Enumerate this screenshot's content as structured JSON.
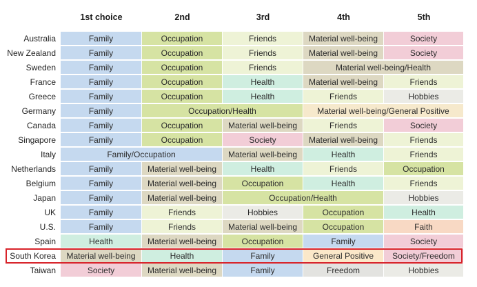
{
  "columns": [
    "1st choice",
    "2nd",
    "3rd",
    "4th",
    "5th"
  ],
  "colors": {
    "Family": "#c5d9ef",
    "Occupation": "#d6e3a3",
    "Friends": "#eef3d6",
    "Material well-being": "#ddd8c2",
    "Society": "#f2cdd7",
    "Health": "#cfeee0",
    "Hobbies": "#ebebe6",
    "Faith": "#f8d9c4",
    "General Positive": "#fbe8c9",
    "Society/Freedom": "#f2cdd7",
    "Freedom": "#e3e3e0",
    "Material well-being/Health": "#ddd8c2",
    "Occupation/Health": "#d6e3a3",
    "Material well-being/General Positive": "#f6e9cc",
    "Family/Occupation": "#c5d9ef"
  },
  "rows": [
    {
      "country": "Australia",
      "cells": [
        {
          "text": "Family",
          "span": 1
        },
        {
          "text": "Occupation",
          "span": 1
        },
        {
          "text": "Friends",
          "span": 1
        },
        {
          "text": "Material well-being",
          "span": 1
        },
        {
          "text": "Society",
          "span": 1
        }
      ]
    },
    {
      "country": "New Zealand",
      "cells": [
        {
          "text": "Family",
          "span": 1
        },
        {
          "text": "Occupation",
          "span": 1
        },
        {
          "text": "Friends",
          "span": 1
        },
        {
          "text": "Material well-being",
          "span": 1
        },
        {
          "text": "Society",
          "span": 1
        }
      ]
    },
    {
      "country": "Sweden",
      "cells": [
        {
          "text": "Family",
          "span": 1
        },
        {
          "text": "Occupation",
          "span": 1
        },
        {
          "text": "Friends",
          "span": 1
        },
        {
          "text": "Material well-being/Health",
          "span": 2
        }
      ]
    },
    {
      "country": "France",
      "cells": [
        {
          "text": "Family",
          "span": 1
        },
        {
          "text": "Occupation",
          "span": 1
        },
        {
          "text": "Health",
          "span": 1
        },
        {
          "text": "Material well-being",
          "span": 1
        },
        {
          "text": "Friends",
          "span": 1
        }
      ]
    },
    {
      "country": "Greece",
      "cells": [
        {
          "text": "Family",
          "span": 1
        },
        {
          "text": "Occupation",
          "span": 1
        },
        {
          "text": "Health",
          "span": 1
        },
        {
          "text": "Friends",
          "span": 1
        },
        {
          "text": "Hobbies",
          "span": 1
        }
      ]
    },
    {
      "country": "Germany",
      "cells": [
        {
          "text": "Family",
          "span": 1
        },
        {
          "text": "Occupation/Health",
          "span": 2
        },
        {
          "text": "Material well-being/General Positive",
          "span": 2
        }
      ]
    },
    {
      "country": "Canada",
      "cells": [
        {
          "text": "Family",
          "span": 1
        },
        {
          "text": "Occupation",
          "span": 1
        },
        {
          "text": "Material well-being",
          "span": 1
        },
        {
          "text": "Friends",
          "span": 1
        },
        {
          "text": "Society",
          "span": 1
        }
      ]
    },
    {
      "country": "Singapore",
      "cells": [
        {
          "text": "Family",
          "span": 1
        },
        {
          "text": "Occupation",
          "span": 1
        },
        {
          "text": "Society",
          "span": 1
        },
        {
          "text": "Material well-being",
          "span": 1
        },
        {
          "text": "Friends",
          "span": 1
        }
      ]
    },
    {
      "country": "Italy",
      "cells": [
        {
          "text": "Family/Occupation",
          "span": 2
        },
        {
          "text": "Material well-being",
          "span": 1
        },
        {
          "text": "Health",
          "span": 1
        },
        {
          "text": "Friends",
          "span": 1
        }
      ]
    },
    {
      "country": "Netherlands",
      "cells": [
        {
          "text": "Family",
          "span": 1
        },
        {
          "text": "Material well-being",
          "span": 1
        },
        {
          "text": "Health",
          "span": 1
        },
        {
          "text": "Friends",
          "span": 1
        },
        {
          "text": "Occupation",
          "span": 1
        }
      ]
    },
    {
      "country": "Belgium",
      "cells": [
        {
          "text": "Family",
          "span": 1
        },
        {
          "text": "Material well-being",
          "span": 1
        },
        {
          "text": "Occupation",
          "span": 1
        },
        {
          "text": "Health",
          "span": 1
        },
        {
          "text": "Friends",
          "span": 1
        }
      ]
    },
    {
      "country": "Japan",
      "cells": [
        {
          "text": "Family",
          "span": 1
        },
        {
          "text": "Material well-being",
          "span": 1
        },
        {
          "text": "Occupation/Health",
          "span": 2
        },
        {
          "text": "Hobbies",
          "span": 1
        }
      ]
    },
    {
      "country": "UK",
      "cells": [
        {
          "text": "Family",
          "span": 1
        },
        {
          "text": "Friends",
          "span": 1
        },
        {
          "text": "Hobbies",
          "span": 1
        },
        {
          "text": "Occupation",
          "span": 1
        },
        {
          "text": "Health",
          "span": 1
        }
      ]
    },
    {
      "country": "U.S.",
      "cells": [
        {
          "text": "Family",
          "span": 1
        },
        {
          "text": "Friends",
          "span": 1
        },
        {
          "text": "Material well-being",
          "span": 1
        },
        {
          "text": "Occupation",
          "span": 1
        },
        {
          "text": "Faith",
          "span": 1
        }
      ]
    },
    {
      "country": "Spain",
      "cells": [
        {
          "text": "Health",
          "span": 1
        },
        {
          "text": "Material well-being",
          "span": 1
        },
        {
          "text": "Occupation",
          "span": 1
        },
        {
          "text": "Family",
          "span": 1
        },
        {
          "text": "Society",
          "span": 1
        }
      ]
    },
    {
      "country": "South Korea",
      "cells": [
        {
          "text": "Material well-being",
          "span": 1
        },
        {
          "text": "Health",
          "span": 1
        },
        {
          "text": "Family",
          "span": 1
        },
        {
          "text": "General Positive",
          "span": 1
        },
        {
          "text": "Society/Freedom",
          "span": 1
        }
      ]
    },
    {
      "country": "Taiwan",
      "cells": [
        {
          "text": "Society",
          "span": 1
        },
        {
          "text": "Material well-being",
          "span": 1
        },
        {
          "text": "Family",
          "span": 1
        },
        {
          "text": "Freedom",
          "span": 1
        },
        {
          "text": "Hobbies",
          "span": 1
        }
      ]
    }
  ]
}
